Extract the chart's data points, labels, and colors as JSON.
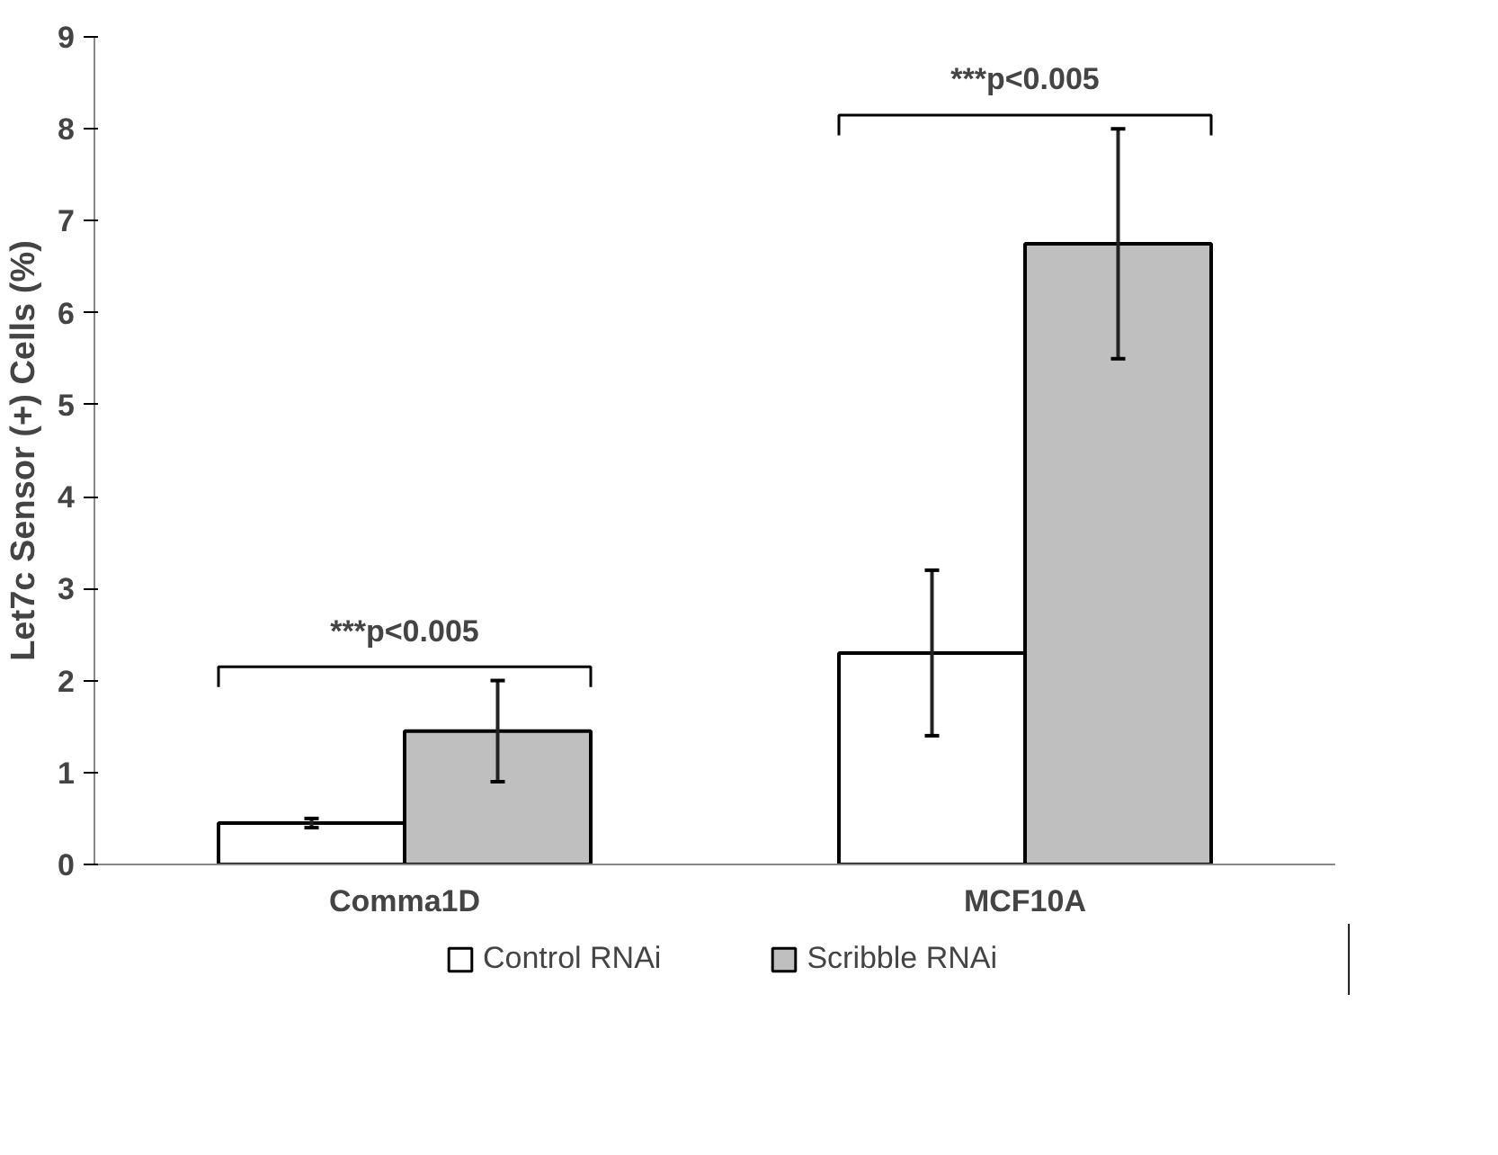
{
  "chart_data": {
    "type": "bar",
    "ylabel": "Let7c Sensor (+) Cells (%)",
    "categories": [
      "Comma1D",
      "MCF10A"
    ],
    "series": [
      {
        "name": "Control RNAi",
        "color": "#ffffff",
        "values": [
          0.45,
          2.3
        ],
        "errors": [
          0.05,
          0.9
        ]
      },
      {
        "name": "Scribble RNAi",
        "color": "#bfbfbf",
        "values": [
          1.45,
          6.75
        ],
        "errors": [
          0.55,
          1.25
        ]
      }
    ],
    "ylim": [
      0,
      9
    ],
    "yticks": [
      0,
      1,
      2,
      3,
      4,
      5,
      6,
      7,
      8,
      9
    ],
    "grid": false,
    "legend": "bottom",
    "annotations": [
      "***p<0.005",
      "***p<0.005"
    ]
  }
}
